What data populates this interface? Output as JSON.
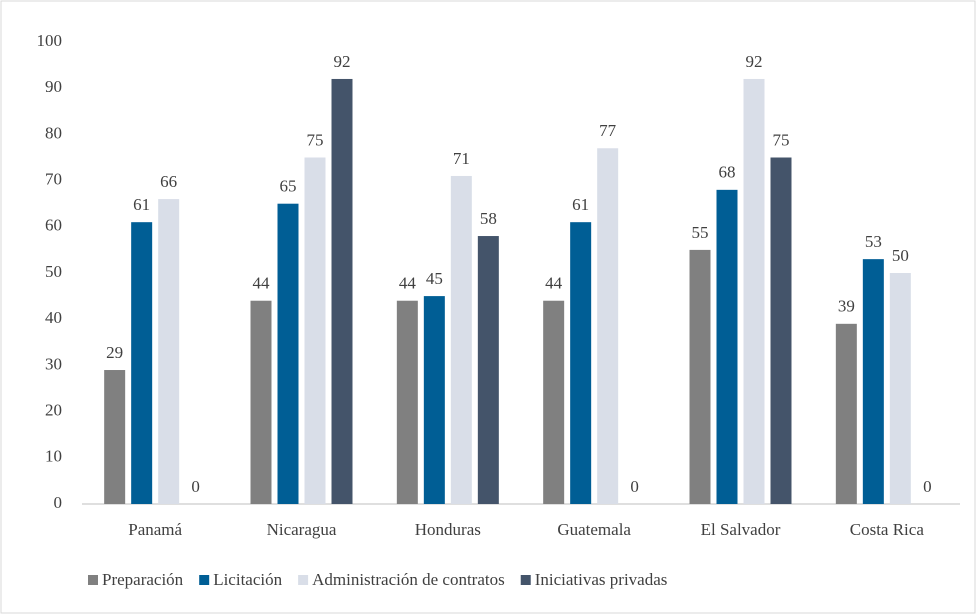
{
  "chart_data": {
    "type": "bar",
    "categories": [
      "Panamá",
      "Nicaragua",
      "Honduras",
      "Guatemala",
      "El Salvador",
      "Costa Rica"
    ],
    "series": [
      {
        "name": "Preparación",
        "color": "#808080",
        "values": [
          29,
          44,
          44,
          44,
          55,
          39
        ]
      },
      {
        "name": "Licitación",
        "color": "#005e95",
        "values": [
          61,
          65,
          45,
          61,
          68,
          53
        ]
      },
      {
        "name": "Administración de contratos",
        "color": "#d9dee8",
        "values": [
          66,
          75,
          71,
          77,
          92,
          50
        ]
      },
      {
        "name": "Iniciativas privadas",
        "color": "#44546a",
        "values": [
          0,
          92,
          58,
          0,
          75,
          0
        ]
      }
    ],
    "ylim": [
      0,
      100
    ],
    "yticks": [
      0,
      10,
      20,
      30,
      40,
      50,
      60,
      70,
      80,
      90,
      100
    ],
    "grid": false,
    "legend": "bottom"
  }
}
